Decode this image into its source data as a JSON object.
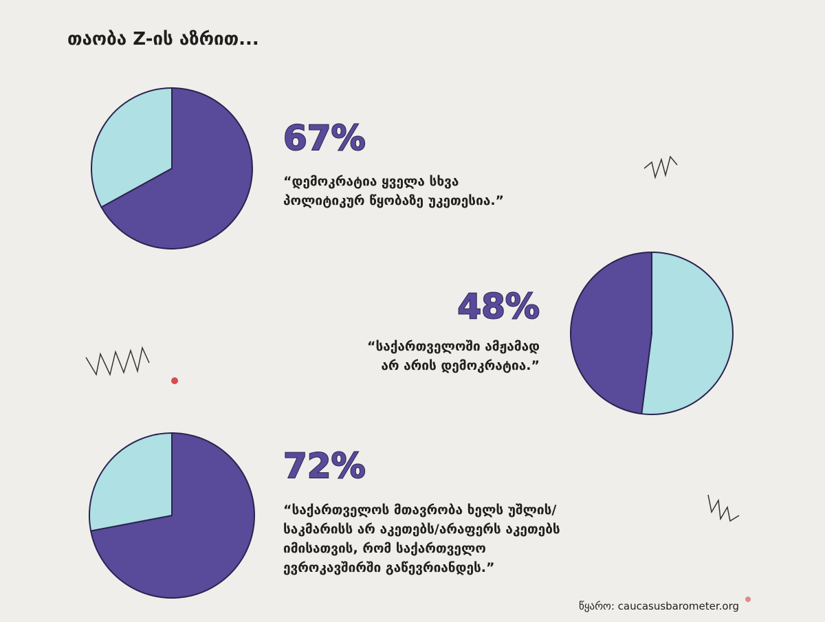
{
  "title": "თაობა Z-ის აზრით...",
  "source": "წყარო: caucasusbarometer.org",
  "chart_data": [
    {
      "type": "pie",
      "values": [
        67,
        33
      ],
      "value_labels": [
        "67%",
        null
      ],
      "colors": [
        "#5a4a9a",
        "#aee0e4"
      ],
      "caption": [
        "“დემოკრატია ყველა სხვა",
        "პოლიტიკურ წყობაზე უკეთესია.”"
      ]
    },
    {
      "type": "pie",
      "values": [
        52,
        48
      ],
      "value_labels": [
        null,
        "48%"
      ],
      "colors": [
        "#aee0e4",
        "#5a4a9a"
      ],
      "caption": [
        "“საქართველოში ამჟამად",
        "არ არის დემოკრატია.”"
      ]
    },
    {
      "type": "pie",
      "values": [
        72,
        28
      ],
      "value_labels": [
        "72%",
        null
      ],
      "colors": [
        "#5a4a9a",
        "#aee0e4"
      ],
      "caption": [
        "“საქართველოს მთავრობა ხელს უშლის/",
        "საკმარისს არ აკეთებს/არაფერს აკეთებს",
        "იმისათვის, რომ საქართველო",
        "ევროკავშირში გაწევრიანდეს.”"
      ]
    }
  ]
}
